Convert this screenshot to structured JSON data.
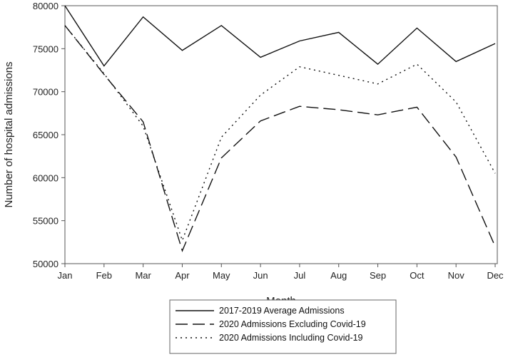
{
  "chart_data": {
    "type": "line",
    "title": "",
    "xlabel": "Month",
    "ylabel": "Number of hospital admissions",
    "categories": [
      "Jan",
      "Feb",
      "Mar",
      "Apr",
      "May",
      "Jun",
      "Jul",
      "Aug",
      "Sep",
      "Oct",
      "Nov",
      "Dec"
    ],
    "ylim": [
      50000,
      80000
    ],
    "yticks": [
      50000,
      55000,
      60000,
      65000,
      70000,
      75000,
      80000
    ],
    "grid": false,
    "legend_position": "bottom",
    "series": [
      {
        "name": "2017-2019 Average Admissions",
        "style": "solid",
        "color": "#111111",
        "values": [
          80000,
          73000,
          78700,
          74800,
          77700,
          74000,
          75900,
          76900,
          73200,
          77400,
          73500,
          75600
        ]
      },
      {
        "name": "2020 Admissions Excluding Covid-19",
        "style": "long-dash",
        "color": "#111111",
        "values": [
          77700,
          72000,
          66500,
          51500,
          62300,
          66600,
          68300,
          67900,
          67300,
          68200,
          62400,
          52000
        ]
      },
      {
        "name": "2020 Admissions Including Covid-19",
        "style": "dotted",
        "color": "#111111",
        "values": [
          77700,
          72100,
          66000,
          52700,
          64700,
          69600,
          72900,
          71900,
          70900,
          73200,
          68800,
          60500
        ]
      }
    ]
  }
}
